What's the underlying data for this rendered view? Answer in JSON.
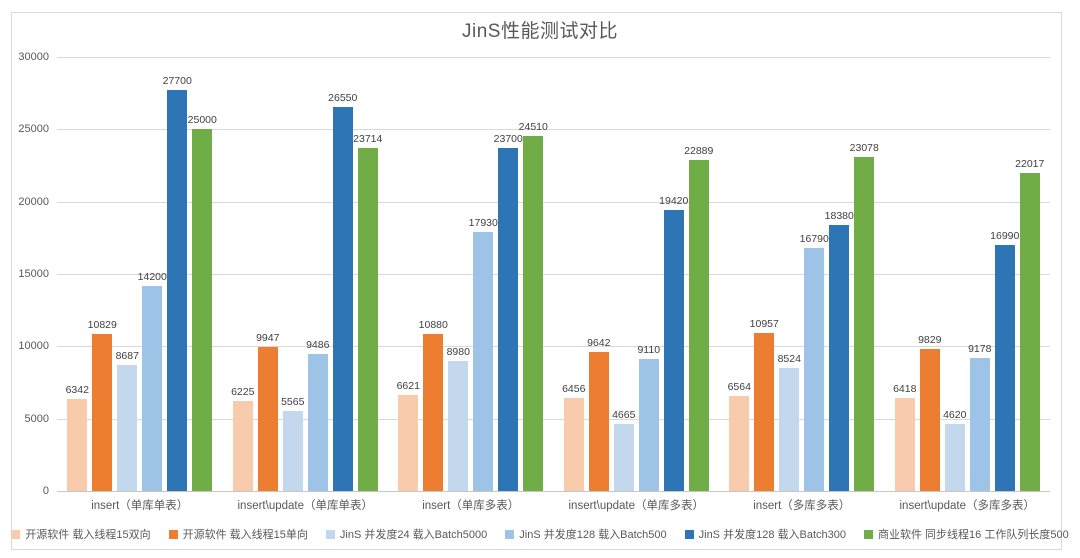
{
  "title": "JinS性能测试对比",
  "chart_data": {
    "type": "bar",
    "title": "JinS性能测试对比",
    "categories": [
      "insert（单库单表）",
      "insert\\update（单库单表）",
      "insert（单库多表）",
      "insert\\update（单库多表）",
      "insert（多库多表）",
      "insert\\update（多库多表）"
    ],
    "series": [
      {
        "name": "开源软件 载入线程15双向",
        "color": "#F8CBAD",
        "values": [
          6342,
          6225,
          6621,
          6456,
          6564,
          6418
        ]
      },
      {
        "name": "开源软件 载入线程15单向",
        "color": "#ED7D31",
        "values": [
          10829,
          9947,
          10880,
          9642,
          10957,
          9829
        ]
      },
      {
        "name": "JinS 并发度24 载入Batch5000",
        "color": "#C3D8EC",
        "values": [
          8687,
          5565,
          8980,
          4665,
          8524,
          4620
        ]
      },
      {
        "name": "JinS 并发度128 载入Batch500",
        "color": "#9DC3E6",
        "values": [
          14200,
          9486,
          17930,
          9110,
          16790,
          9178
        ]
      },
      {
        "name": "JinS 并发度128 载入Batch300",
        "color": "#2E75B6",
        "values": [
          27700,
          26550,
          23700,
          19420,
          18380,
          16990
        ]
      },
      {
        "name": "商业软件 同步线程16 工作队列长度500",
        "color": "#70AD47",
        "values": [
          25000,
          23714,
          24510,
          22889,
          23078,
          22017
        ]
      }
    ],
    "ylim": [
      0,
      30000
    ],
    "yticks": [
      0,
      5000,
      10000,
      15000,
      20000,
      25000,
      30000
    ],
    "grid": "horizontal",
    "legend_position": "bottom",
    "data_labels": true
  },
  "colors": {
    "grid": "#D9D9D9",
    "axis_line": "#C6C6C6",
    "frame_border": "#D9D9D9",
    "title_text": "#595959",
    "tick_text": "#595959",
    "data_label_text": "#404040",
    "background": "#FFFFFF"
  }
}
